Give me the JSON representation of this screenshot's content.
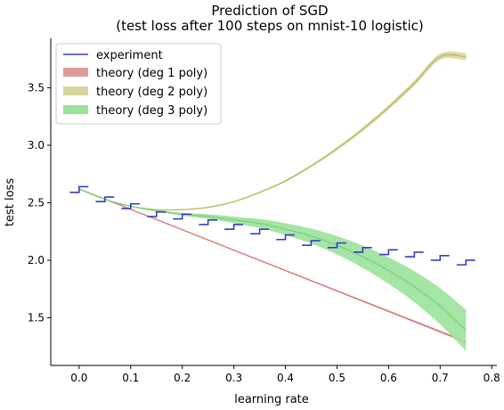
{
  "chart_data": {
    "type": "line",
    "title": "Prediction of SGD",
    "subtitle": "(test loss after 100 steps on mnist-10 logistic)",
    "xlabel": "learning rate",
    "ylabel": "test loss",
    "xlim": [
      -0.055,
      0.81
    ],
    "ylim": [
      1.085,
      3.93
    ],
    "x_ticks": [
      0.0,
      0.1,
      0.2,
      0.3,
      0.4,
      0.5,
      0.6,
      0.7,
      0.8
    ],
    "x_tick_labels": [
      "0.0",
      "0.1",
      "0.2",
      "0.3",
      "0.4",
      "0.5",
      "0.6",
      "0.7",
      "0.8"
    ],
    "y_ticks": [
      1.5,
      2.0,
      2.5,
      3.0,
      3.5
    ],
    "y_tick_labels": [
      "1.5",
      "2.0",
      "2.5",
      "3.0",
      "3.5"
    ],
    "grid": false,
    "legend_position": "top-left",
    "legend": [
      {
        "label": "experiment",
        "kind": "line",
        "color": "#3b3bc0"
      },
      {
        "label": "theory (deg 1 poly)",
        "kind": "patch",
        "color": "#dd9c9c"
      },
      {
        "label": "theory (deg 2 poly)",
        "kind": "patch",
        "color": "#d6d69c"
      },
      {
        "label": "theory (deg 3 poly)",
        "kind": "patch",
        "color": "#9be29b"
      }
    ],
    "experiment": {
      "color": "#3b3bc0",
      "step_width": 0.018,
      "pairs": [
        {
          "x": -0.018,
          "y": [
            2.59,
            2.64
          ]
        },
        {
          "x": 0.032,
          "y": [
            2.51,
            2.55
          ]
        },
        {
          "x": 0.082,
          "y": [
            2.45,
            2.49
          ]
        },
        {
          "x": 0.132,
          "y": [
            2.38,
            2.42
          ]
        },
        {
          "x": 0.182,
          "y": [
            2.36,
            2.4
          ]
        },
        {
          "x": 0.232,
          "y": [
            2.31,
            2.35
          ]
        },
        {
          "x": 0.282,
          "y": [
            2.27,
            2.31
          ]
        },
        {
          "x": 0.332,
          "y": [
            2.23,
            2.27
          ]
        },
        {
          "x": 0.382,
          "y": [
            2.18,
            2.22
          ]
        },
        {
          "x": 0.432,
          "y": [
            2.13,
            2.17
          ]
        },
        {
          "x": 0.482,
          "y": [
            2.11,
            2.15
          ]
        },
        {
          "x": 0.532,
          "y": [
            2.07,
            2.11
          ]
        },
        {
          "x": 0.582,
          "y": [
            2.05,
            2.09
          ]
        },
        {
          "x": 0.632,
          "y": [
            2.03,
            2.07
          ]
        },
        {
          "x": 0.682,
          "y": [
            2.0,
            2.04
          ]
        },
        {
          "x": 0.732,
          "y": [
            1.96,
            2.0
          ]
        }
      ]
    },
    "theory_deg1": {
      "line_color": "#d77b7b",
      "fill_color": "#dd9c9c",
      "x": [
        0.0,
        0.75
      ],
      "y": [
        2.62,
        1.29
      ],
      "band_halfwidth": [
        0.0,
        0.01
      ]
    },
    "theory_deg2": {
      "line_color": "#bcbc6a",
      "fill_color": "#d6d69c",
      "x": [
        0.0,
        0.05,
        0.1,
        0.15,
        0.2,
        0.25,
        0.3,
        0.35,
        0.4,
        0.45,
        0.5,
        0.55,
        0.6,
        0.65,
        0.7,
        0.75
      ],
      "y": [
        2.62,
        2.53,
        2.47,
        2.44,
        2.44,
        2.46,
        2.51,
        2.59,
        2.69,
        2.82,
        2.97,
        3.14,
        3.33,
        3.54,
        3.77,
        3.77
      ],
      "band_halfwidth": [
        0.0,
        0.03
      ]
    },
    "theory_deg3": {
      "line_color": "#7fd37f",
      "fill_color": "#9be29b",
      "x": [
        0.0,
        0.05,
        0.1,
        0.15,
        0.2,
        0.25,
        0.3,
        0.35,
        0.4,
        0.45,
        0.5,
        0.55,
        0.6,
        0.65,
        0.7,
        0.75
      ],
      "y": [
        2.62,
        2.53,
        2.47,
        2.43,
        2.4,
        2.38,
        2.35,
        2.32,
        2.27,
        2.21,
        2.13,
        2.03,
        1.91,
        1.77,
        1.6,
        1.39
      ],
      "band_halfwidth": [
        0.0,
        0.18
      ]
    }
  }
}
